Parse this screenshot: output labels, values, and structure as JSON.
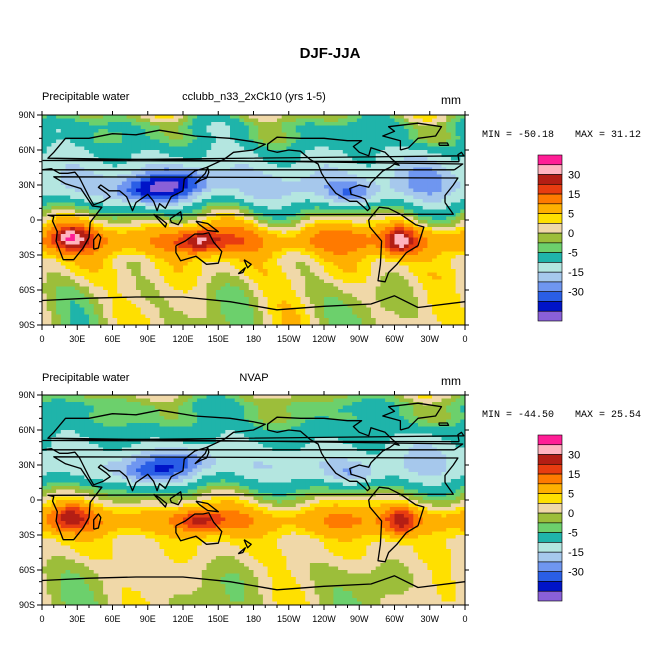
{
  "figure": {
    "title": "DJF-JJA"
  },
  "palette": [
    "#8A60D8",
    "#0014C8",
    "#2A5EE6",
    "#6F96F0",
    "#A6C8EC",
    "#B4E6E0",
    "#1FB4AA",
    "#6CD06C",
    "#9CBE3A",
    "#F0D8A8",
    "#FFE000",
    "#FFB000",
    "#FF7A00",
    "#E83C10",
    "#B41E14",
    "#FFB4C0",
    "#FF1E96"
  ],
  "colorbar_labels": [
    "30",
    "15",
    "5",
    "0",
    "-5",
    "-15",
    "-30"
  ],
  "x_ticks": [
    "0",
    "30E",
    "60E",
    "90E",
    "120E",
    "150E",
    "180",
    "150W",
    "120W",
    "90W",
    "60W",
    "30W",
    "0"
  ],
  "y_ticks": [
    "90N",
    "60N",
    "30N",
    "0",
    "30S",
    "60S",
    "90S"
  ],
  "chart_data": [
    {
      "type": "heatmap",
      "title_left": "Precipitable water",
      "title_center": "cclubb_n33_2xCk10 (yrs 1-5)",
      "units": "mm",
      "min_label": "MIN = -50.18",
      "max_label": "MAX =  31.12",
      "min": -50.18,
      "max": 31.12,
      "xlim": [
        0,
        360
      ],
      "ylim": [
        -90,
        90
      ],
      "contour_levels": [
        -35,
        -30,
        -25,
        -20,
        -15,
        -10,
        -5,
        -2.5,
        0,
        2.5,
        5,
        10,
        15,
        20,
        25,
        30
      ],
      "regions_lat_bands_mm": [
        {
          "lat": 75,
          "value": -6
        },
        {
          "lat": 45,
          "value": -12
        },
        {
          "lat": 20,
          "value": -18
        },
        {
          "lat": 5,
          "value": -3
        },
        {
          "lat": -15,
          "value": 8
        },
        {
          "lat": -35,
          "value": 3
        },
        {
          "lat": -60,
          "value": 1
        }
      ]
    },
    {
      "type": "heatmap",
      "title_left": "Precipitable water",
      "title_center": "NVAP",
      "units": "mm",
      "min_label": "MIN = -44.50",
      "max_label": "MAX =  25.54",
      "min": -44.5,
      "max": 25.54,
      "xlim": [
        0,
        360
      ],
      "ylim": [
        -90,
        90
      ],
      "contour_levels": [
        -35,
        -30,
        -25,
        -20,
        -15,
        -10,
        -5,
        -2.5,
        0,
        2.5,
        5,
        10,
        15,
        20,
        25,
        30
      ],
      "regions_lat_bands_mm": [
        {
          "lat": 75,
          "value": -6
        },
        {
          "lat": 45,
          "value": -11
        },
        {
          "lat": 20,
          "value": -15
        },
        {
          "lat": 5,
          "value": -2
        },
        {
          "lat": -15,
          "value": 7
        },
        {
          "lat": -35,
          "value": 3
        },
        {
          "lat": -60,
          "value": 1
        }
      ]
    }
  ]
}
